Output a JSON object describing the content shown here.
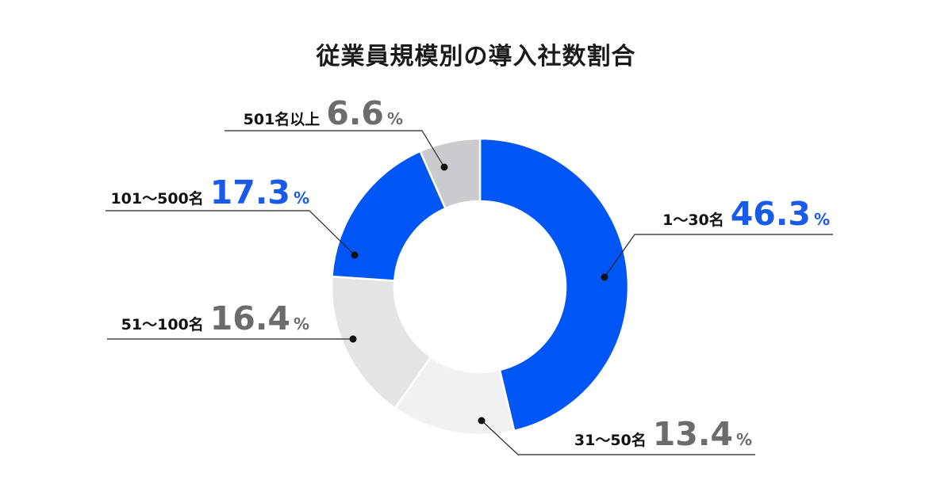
{
  "chart_data": {
    "type": "pie",
    "title": "従業員規模別の導入社数割合",
    "slices": [
      {
        "label": "1〜30名",
        "value": 46.3,
        "display": "46.3",
        "unit": "%",
        "color": "#0055f5",
        "text_color": "#1a5ae8"
      },
      {
        "label": "31〜50名",
        "value": 13.4,
        "display": "13.4",
        "unit": "%",
        "color": "#f1f0f3",
        "text_color": "#6c6c6c"
      },
      {
        "label": "51〜100名",
        "value": 16.4,
        "display": "16.4",
        "unit": "%",
        "color": "#e4e4e7",
        "text_color": "#6c6c6c"
      },
      {
        "label": "101〜500名",
        "value": 17.3,
        "display": "17.3",
        "unit": "%",
        "color": "#0055f5",
        "text_color": "#1a5ae8"
      },
      {
        "label": "501名以上",
        "value": 6.6,
        "display": "6.6",
        "unit": "%",
        "color": "#cbcbcf",
        "text_color": "#6c6c6c"
      }
    ],
    "legend": "none"
  }
}
